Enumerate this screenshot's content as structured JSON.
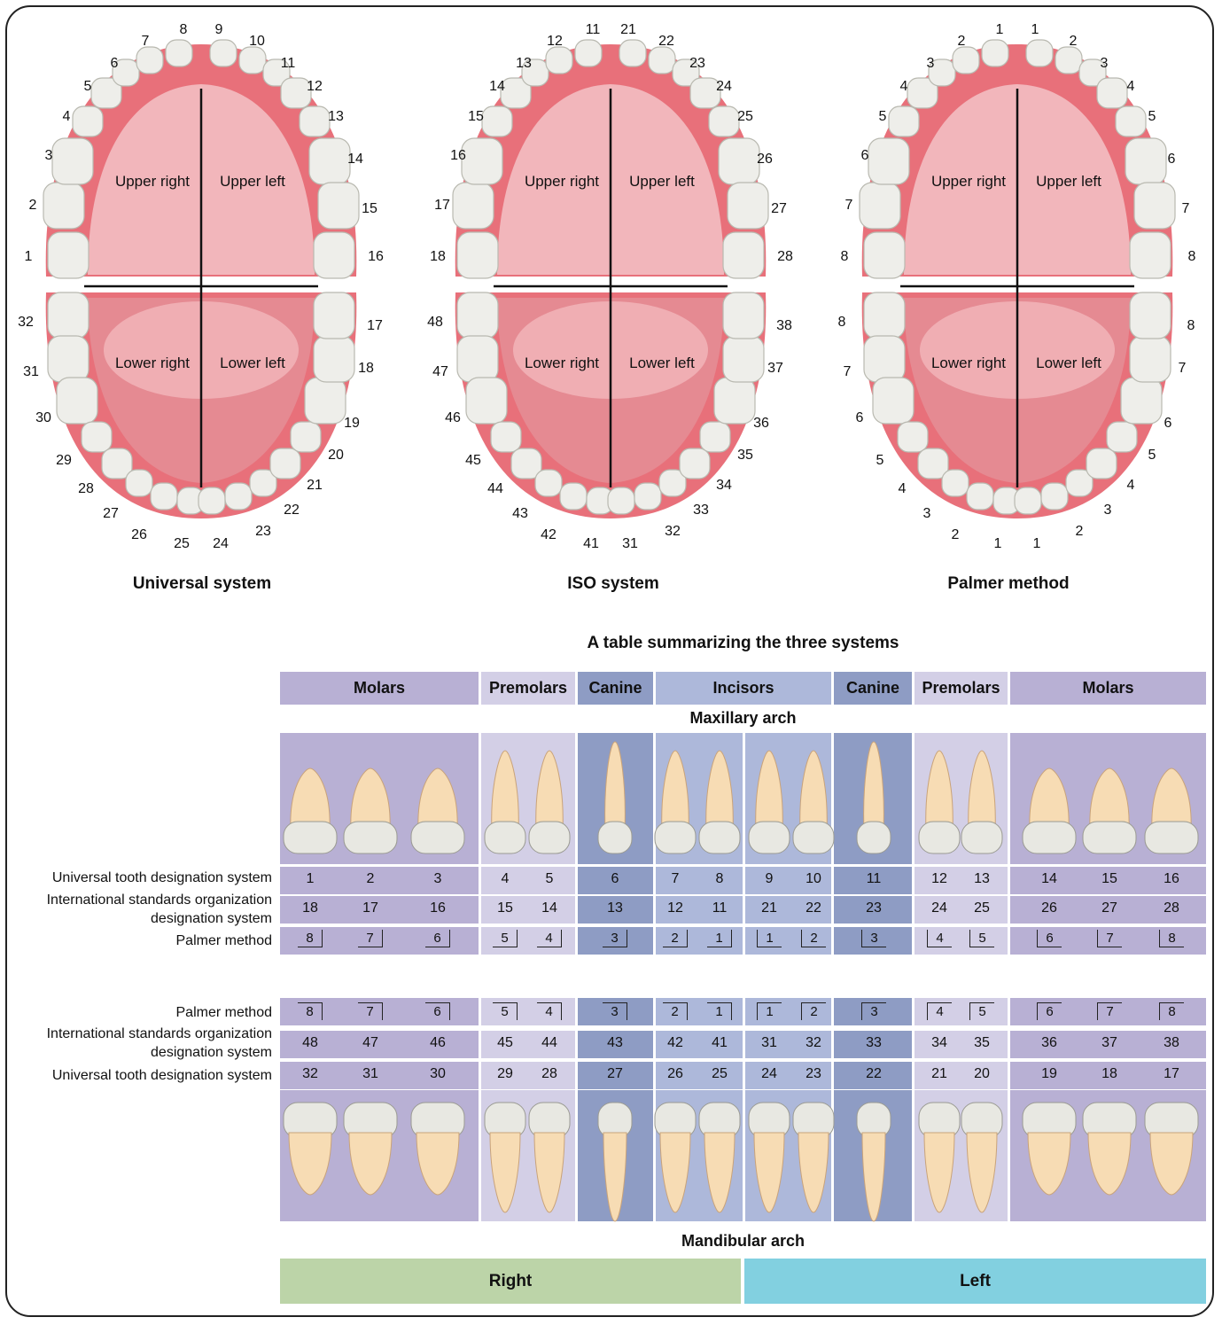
{
  "colors": {
    "molar": "#b8b0d4",
    "premolar": "#d3cfe6",
    "canine": "#8e9cc4",
    "incisor": "#adb8da",
    "right": "#bcd4a8",
    "left": "#82d0e0",
    "gum": "#e8707a",
    "palate": "#f2b6bb",
    "tooth": "#eeeeea"
  },
  "arches": [
    {
      "name": "Universal system",
      "upper": [
        "1",
        "2",
        "3",
        "4",
        "5",
        "6",
        "7",
        "8",
        "9",
        "10",
        "11",
        "12",
        "13",
        "14",
        "15",
        "16"
      ],
      "lower": [
        "32",
        "31",
        "30",
        "29",
        "28",
        "27",
        "26",
        "25",
        "24",
        "23",
        "22",
        "21",
        "20",
        "19",
        "18",
        "17"
      ]
    },
    {
      "name": "ISO system",
      "upper": [
        "18",
        "17",
        "16",
        "15",
        "14",
        "13",
        "12",
        "11",
        "21",
        "22",
        "23",
        "24",
        "25",
        "26",
        "27",
        "28"
      ],
      "lower": [
        "48",
        "47",
        "46",
        "45",
        "44",
        "43",
        "42",
        "41",
        "31",
        "32",
        "33",
        "34",
        "35",
        "36",
        "37",
        "38"
      ]
    },
    {
      "name": "Palmer method",
      "upper": [
        "8",
        "7",
        "6",
        "5",
        "4",
        "3",
        "2",
        "1",
        "1",
        "2",
        "3",
        "4",
        "5",
        "6",
        "7",
        "8"
      ],
      "lower": [
        "8",
        "7",
        "6",
        "5",
        "4",
        "3",
        "2",
        "1",
        "1",
        "2",
        "3",
        "4",
        "5",
        "6",
        "7",
        "8"
      ]
    }
  ],
  "quadrants": {
    "upper_right": "Upper right",
    "upper_left": "Upper left",
    "lower_right": "Lower right",
    "lower_left": "Lower left"
  },
  "table": {
    "title": "A table summarizing the three systems",
    "headers": [
      "Molars",
      "Premolars",
      "Canine",
      "Incisors",
      "Canine",
      "Premolars",
      "Molars"
    ],
    "maxillary_label": "Maxillary arch",
    "mandibular_label": "Mandibular arch",
    "row_labels": {
      "universal": "Universal tooth designation system",
      "iso_line1": "International standards organization",
      "iso_line2": "designation system",
      "palmer": "Palmer method"
    },
    "upper_universal": [
      "1",
      "2",
      "3",
      "4",
      "5",
      "6",
      "7",
      "8",
      "9",
      "10",
      "11",
      "12",
      "13",
      "14",
      "15",
      "16"
    ],
    "upper_iso": [
      "18",
      "17",
      "16",
      "15",
      "14",
      "13",
      "12",
      "11",
      "21",
      "22",
      "23",
      "24",
      "25",
      "26",
      "27",
      "28"
    ],
    "upper_palmer": [
      "8",
      "7",
      "6",
      "5",
      "4",
      "3",
      "2",
      "1",
      "1",
      "2",
      "3",
      "4",
      "5",
      "6",
      "7",
      "8"
    ],
    "lower_palmer": [
      "8",
      "7",
      "6",
      "5",
      "4",
      "3",
      "2",
      "1",
      "1",
      "2",
      "3",
      "4",
      "5",
      "6",
      "7",
      "8"
    ],
    "lower_iso": [
      "48",
      "47",
      "46",
      "45",
      "44",
      "43",
      "42",
      "41",
      "31",
      "32",
      "33",
      "34",
      "35",
      "36",
      "37",
      "38"
    ],
    "lower_universal": [
      "32",
      "31",
      "30",
      "29",
      "28",
      "27",
      "26",
      "25",
      "24",
      "23",
      "22",
      "21",
      "20",
      "19",
      "18",
      "17"
    ],
    "right_label": "Right",
    "left_label": "Left"
  }
}
